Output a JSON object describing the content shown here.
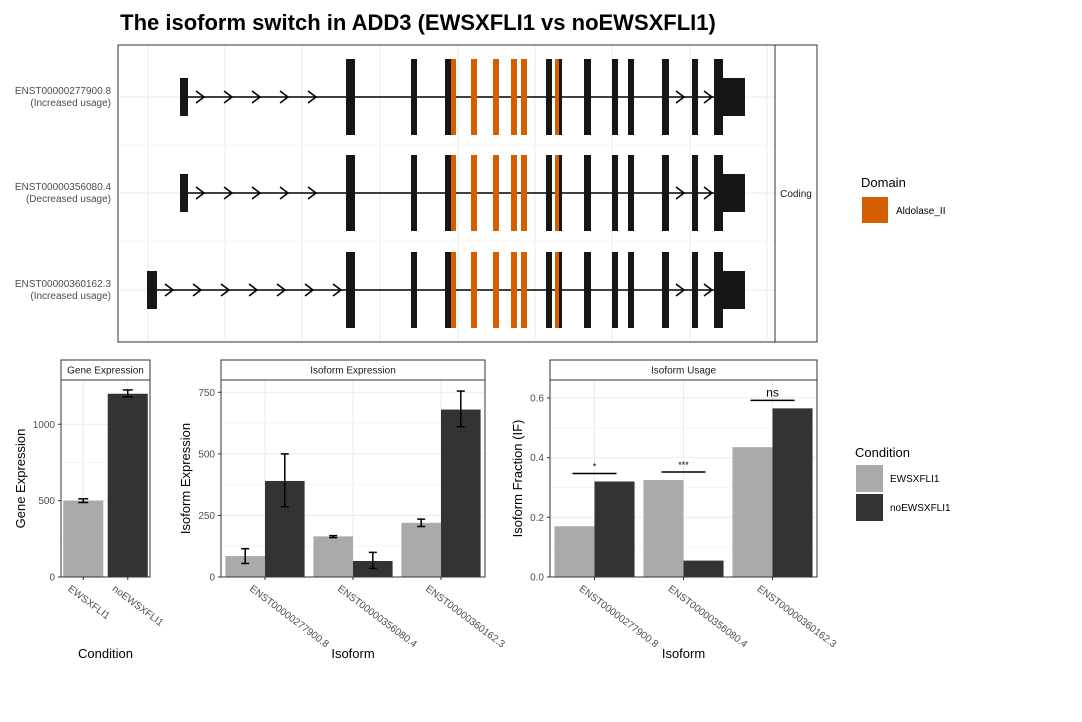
{
  "title": "The isoform switch in ADD3 (EWSXFLI1 vs noEWSXFLI1)",
  "colors": {
    "domain": "#D55E00",
    "exon": "#161616",
    "cond1": "#AAAAAA",
    "cond2": "#333333",
    "grid": "#EBEBEB",
    "frame": "#333333"
  },
  "structure": {
    "strip_label": "Coding",
    "domain_legend_title": "Domain",
    "domain_legend_items": [
      {
        "label": "Aldolase_II",
        "color": "#D55E00"
      }
    ],
    "isoforms": [
      {
        "id": "ENST00000277900.8",
        "usage": "(Increased usage)",
        "first_exon": "late"
      },
      {
        "id": "ENST00000356080.4",
        "usage": "(Decreased usage)",
        "first_exon": "late"
      },
      {
        "id": "ENST00000360162.3",
        "usage": "(Increased usage)",
        "first_exon": "early"
      }
    ]
  },
  "condition_legend": {
    "title": "Condition",
    "items": [
      {
        "label": "EWSXFLI1",
        "color": "#AAAAAA"
      },
      {
        "label": "noEWSXFLI1",
        "color": "#333333"
      }
    ]
  },
  "chart_data": [
    {
      "type": "bar",
      "strip": "Gene Expression",
      "xlabel": "Condition",
      "ylabel": "Gene Expression",
      "categories": [
        "EWSXFLI1",
        "noEWSXFLI1"
      ],
      "values": [
        500,
        1200
      ],
      "errors": [
        [
          488,
          512
        ],
        [
          1180,
          1225
        ]
      ],
      "ylim": [
        0,
        1290
      ],
      "yticks": [
        0,
        500,
        1000
      ]
    },
    {
      "type": "bar",
      "strip": "Isoform Expression",
      "xlabel": "Isoform",
      "ylabel": "Isoform Expression",
      "categories": [
        "ENST00000277900.8",
        "ENST00000356080.4",
        "ENST00000360162.3"
      ],
      "series": [
        {
          "name": "EWSXFLI1",
          "values": [
            85,
            165,
            220
          ],
          "errors": [
            [
              55,
              115
            ],
            [
              160,
              168
            ],
            [
              205,
              235
            ]
          ]
        },
        {
          "name": "noEWSXFLI1",
          "values": [
            390,
            65,
            680
          ],
          "errors": [
            [
              285,
              500
            ],
            [
              35,
              100
            ],
            [
              610,
              755
            ]
          ]
        }
      ],
      "ylim": [
        0,
        800
      ],
      "yticks": [
        0,
        250,
        500,
        750
      ]
    },
    {
      "type": "bar",
      "strip": "Isoform Usage",
      "xlabel": "Isoform",
      "ylabel": "Isoform Fraction (IF)",
      "categories": [
        "ENST00000277900.8",
        "ENST00000356080.4",
        "ENST00000360162.3"
      ],
      "series": [
        {
          "name": "EWSXFLI1",
          "values": [
            0.17,
            0.325,
            0.435
          ]
        },
        {
          "name": "noEWSXFLI1",
          "values": [
            0.32,
            0.055,
            0.565
          ]
        }
      ],
      "significance": [
        "*",
        "***",
        "ns"
      ],
      "ylim": [
        0,
        0.66
      ],
      "yticks": [
        0.0,
        0.2,
        0.4,
        0.6
      ]
    }
  ]
}
